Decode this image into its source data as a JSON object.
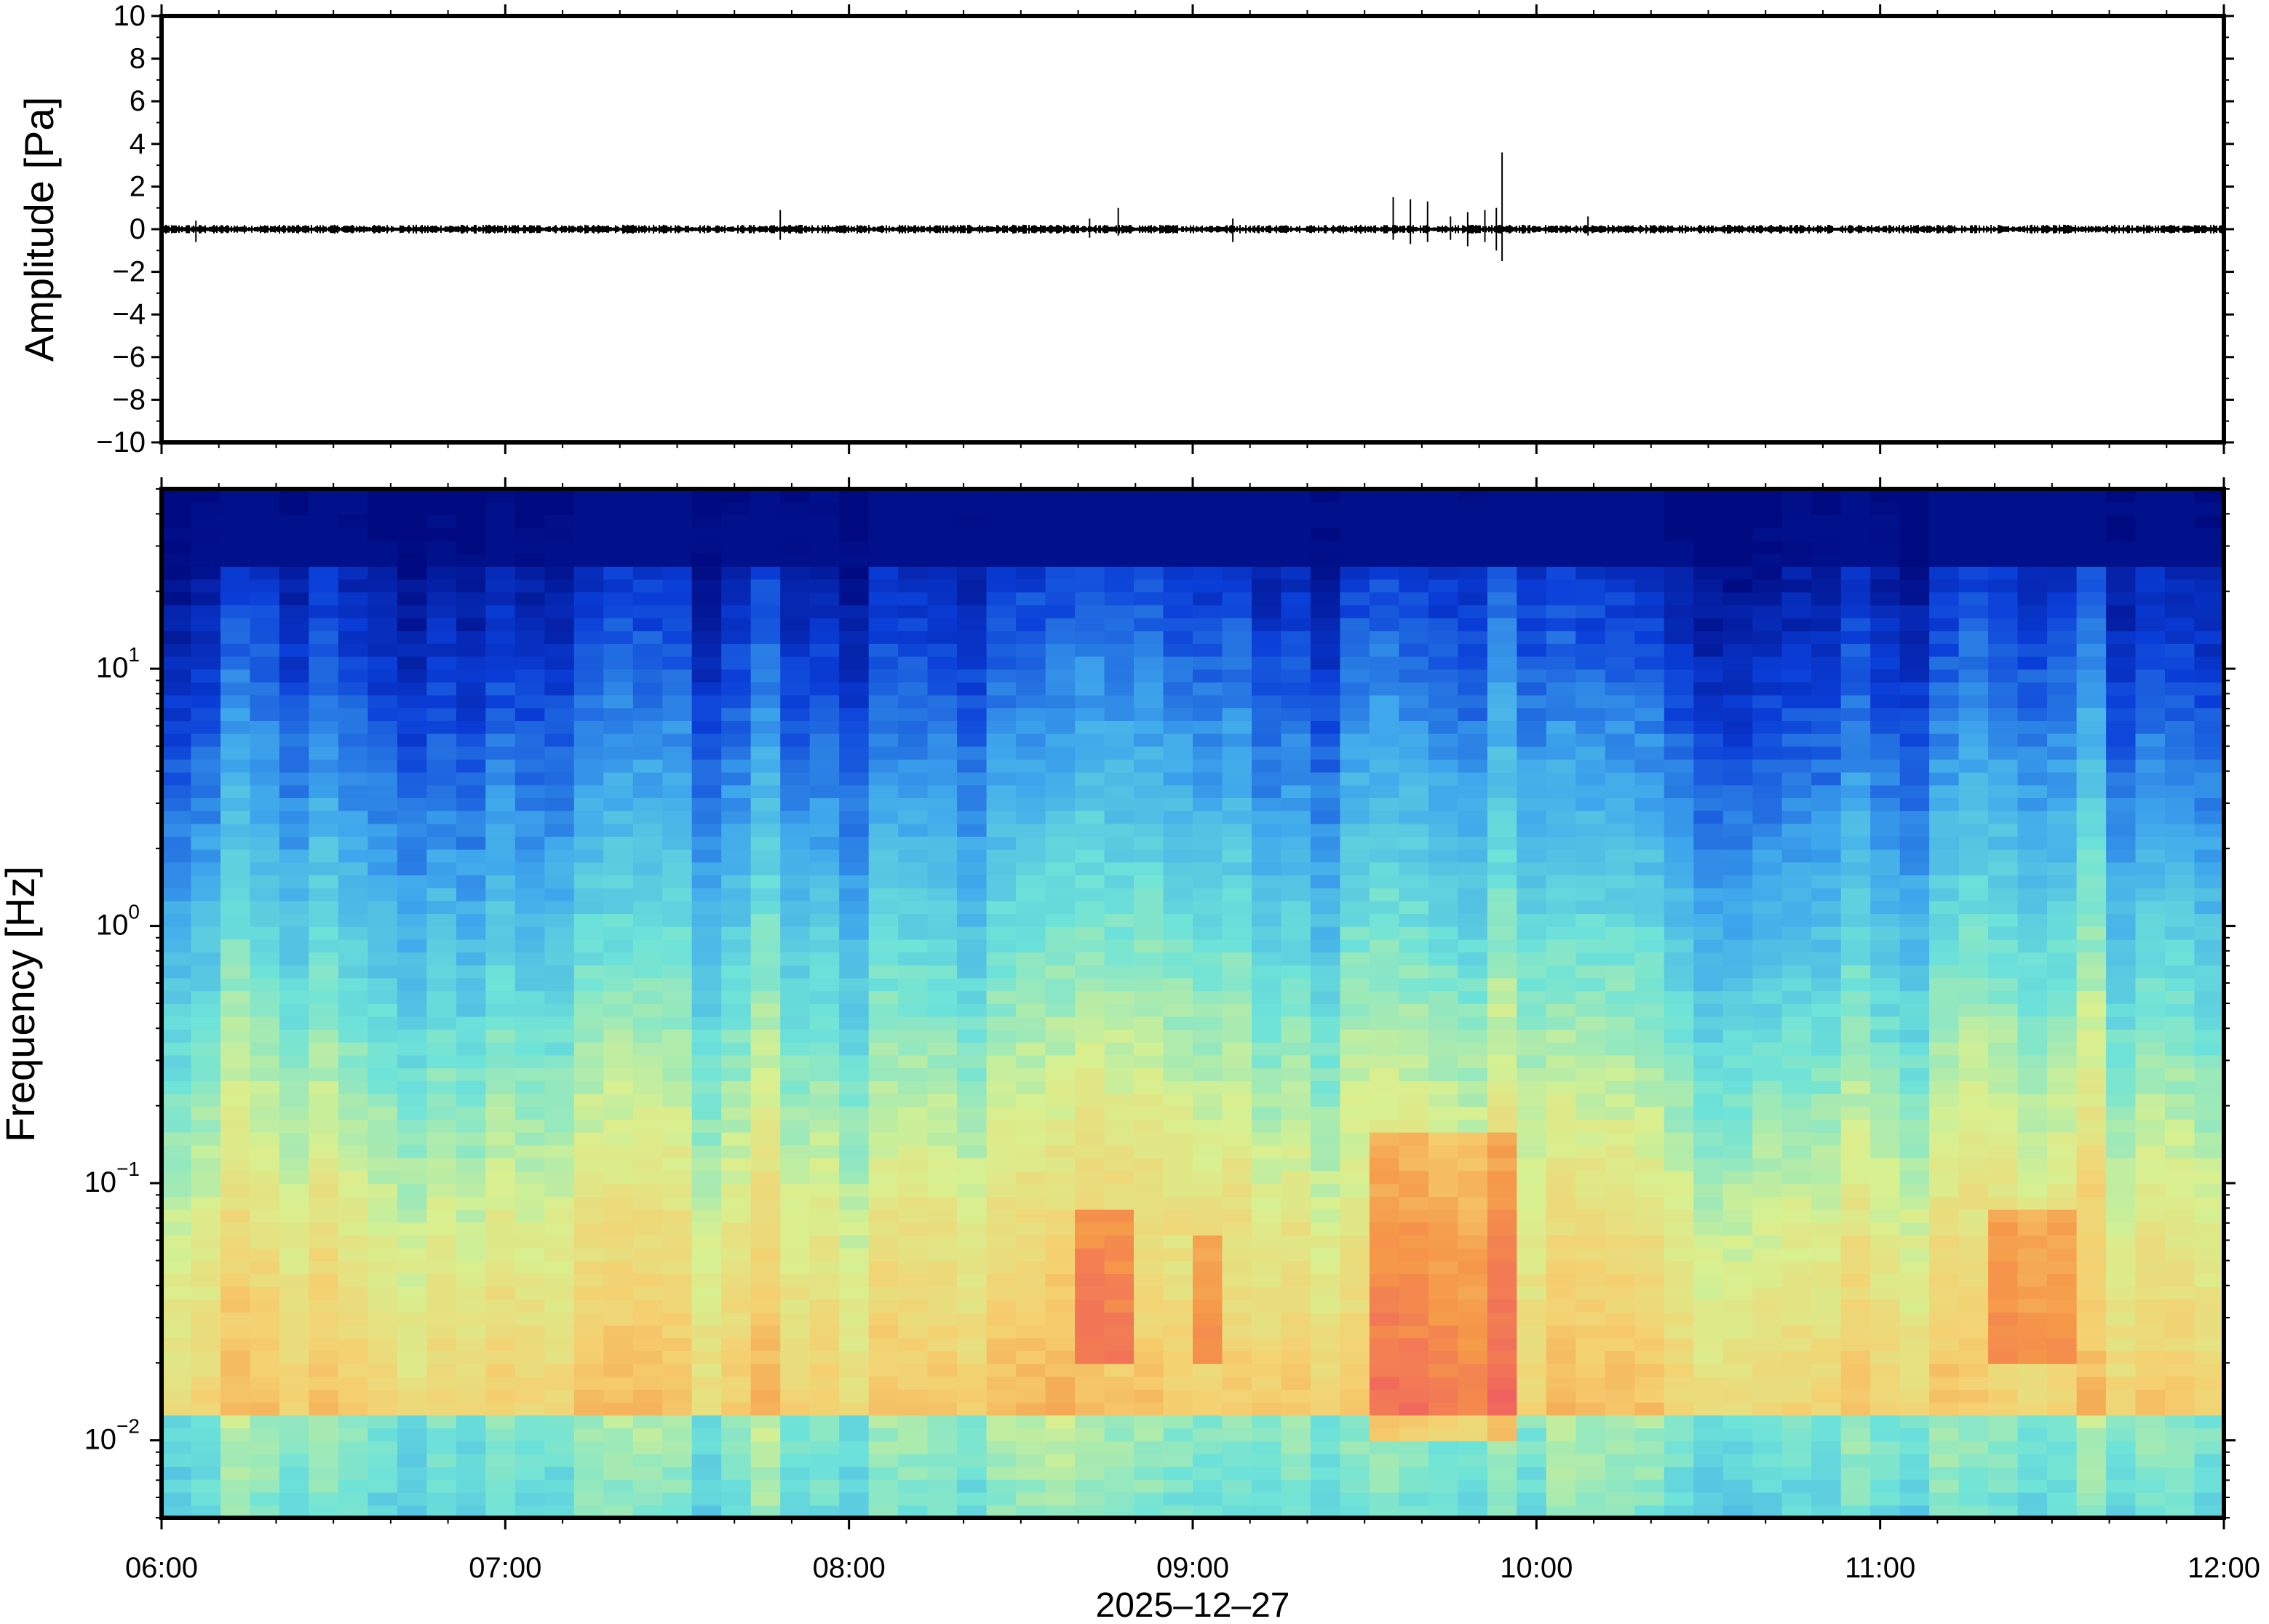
{
  "chart_data": [
    {
      "type": "line",
      "panel": "waveform",
      "ylabel": "Amplitude [Pa]",
      "ylim": [
        -10,
        10
      ],
      "yticks": [
        -10,
        -8,
        -6,
        -4,
        -2,
        0,
        2,
        4,
        6,
        8,
        10
      ],
      "ytick_labels": [
        "−10",
        "−8",
        "−6",
        "−4",
        "−2",
        "0",
        "2",
        "4",
        "6",
        "8",
        "10"
      ],
      "xlim": [
        "06:00",
        "12:00"
      ],
      "series": [
        {
          "color": "#000000",
          "baseline_noise_pa": 0.15,
          "events": [
            {
              "time": "06:06",
              "min": -0.6,
              "max": 0.4
            },
            {
              "time": "07:48",
              "min": -0.5,
              "max": 0.9
            },
            {
              "time": "08:42",
              "min": -0.4,
              "max": 0.5
            },
            {
              "time": "08:47",
              "min": -0.3,
              "max": 1.0
            },
            {
              "time": "09:07",
              "min": -0.6,
              "max": 0.5
            },
            {
              "time": "09:35",
              "min": -0.5,
              "max": 1.5
            },
            {
              "time": "09:38",
              "min": -0.7,
              "max": 1.4
            },
            {
              "time": "09:41",
              "min": -0.6,
              "max": 1.3
            },
            {
              "time": "09:45",
              "min": -0.5,
              "max": 0.6
            },
            {
              "time": "09:48",
              "min": -0.8,
              "max": 0.8
            },
            {
              "time": "09:51",
              "min": -0.6,
              "max": 0.9
            },
            {
              "time": "09:53",
              "min": -1.0,
              "max": 1.0
            },
            {
              "time": "09:54",
              "min": -1.5,
              "max": 3.6
            },
            {
              "time": "10:09",
              "min": -0.3,
              "max": 0.6
            }
          ]
        }
      ]
    },
    {
      "type": "heatmap",
      "panel": "spectrogram",
      "ylabel": "Frequency [Hz]",
      "yscale": "log",
      "ylim": [
        0.005,
        50
      ],
      "yticks": [
        {
          "base": "10",
          "exp": "−2",
          "value": 0.01
        },
        {
          "base": "10",
          "exp": "−1",
          "value": 0.1
        },
        {
          "base": "10",
          "exp": "0",
          "value": 1
        },
        {
          "base": "10",
          "exp": "1",
          "value": 10
        }
      ],
      "xlim": [
        "06:00",
        "12:00"
      ],
      "colormap": "rainbow (blue low power → red high power)",
      "colors": [
        "#000a80",
        "#0a3ed8",
        "#3fa8ec",
        "#6ee3d8",
        "#d8f090",
        "#f5d070",
        "#f59848",
        "#f06060"
      ],
      "high_energy_periods": [
        {
          "start": "09:32",
          "end": "09:58",
          "freq_range": [
            0.01,
            0.15
          ]
        },
        {
          "start": "08:42",
          "end": "08:50",
          "freq_range": [
            0.02,
            0.08
          ]
        },
        {
          "start": "09:00",
          "end": "09:06",
          "freq_range": [
            0.02,
            0.06
          ]
        },
        {
          "start": "11:18",
          "end": "11:33",
          "freq_range": [
            0.02,
            0.08
          ]
        }
      ]
    }
  ],
  "xaxis": {
    "tick_labels": [
      "06:00",
      "07:00",
      "08:00",
      "09:00",
      "10:00",
      "11:00",
      "12:00"
    ],
    "date_label": "2025–12–27"
  }
}
